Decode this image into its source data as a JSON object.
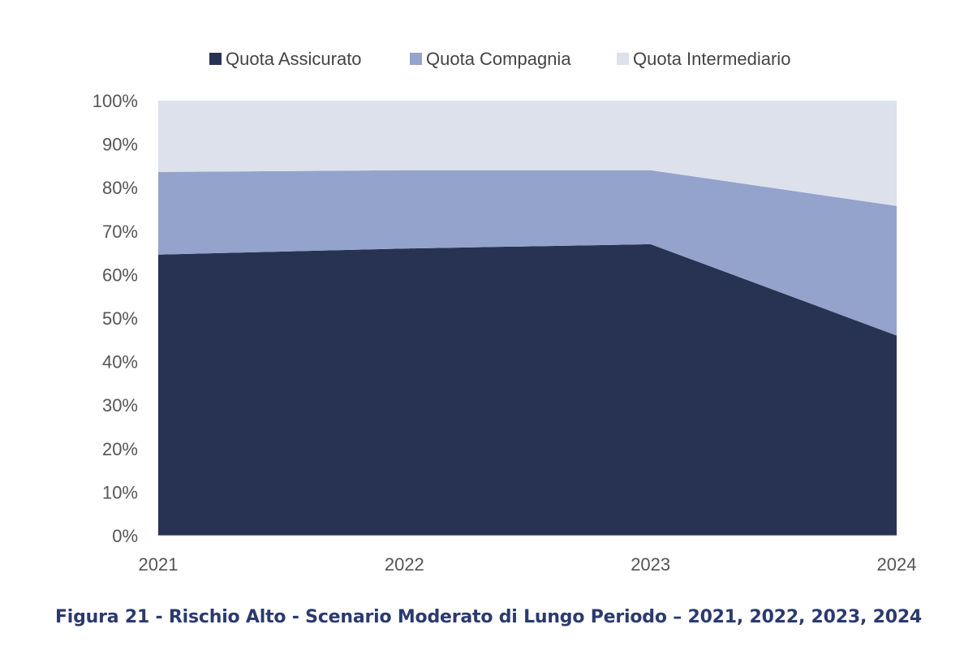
{
  "chart_data": {
    "type": "area",
    "stacked": true,
    "percent": true,
    "x": [
      "2021",
      "2022",
      "2023",
      "2024"
    ],
    "series": [
      {
        "name": "Quota Assicurato",
        "color": "#283353",
        "values": [
          64.6,
          66.0,
          67.0,
          46.0
        ]
      },
      {
        "name": "Quota Compagnia",
        "color": "#94a3cc",
        "values": [
          19.0,
          18.0,
          17.0,
          29.8
        ]
      },
      {
        "name": "Quota Intermediario",
        "color": "#dce1ec",
        "values": [
          16.4,
          16.0,
          16.0,
          24.2
        ]
      }
    ],
    "yticks": [
      "0%",
      "10%",
      "20%",
      "30%",
      "40%",
      "50%",
      "60%",
      "70%",
      "80%",
      "90%",
      "100%"
    ],
    "ylim": [
      0,
      100
    ],
    "grid": false,
    "legend_position": "top-center",
    "caption": "Figura 21 - Rischio Alto - Scenario Moderato di Lungo Periodo – 2021, 2022, 2023, 2024",
    "caption_color": "#2b3a6e"
  }
}
